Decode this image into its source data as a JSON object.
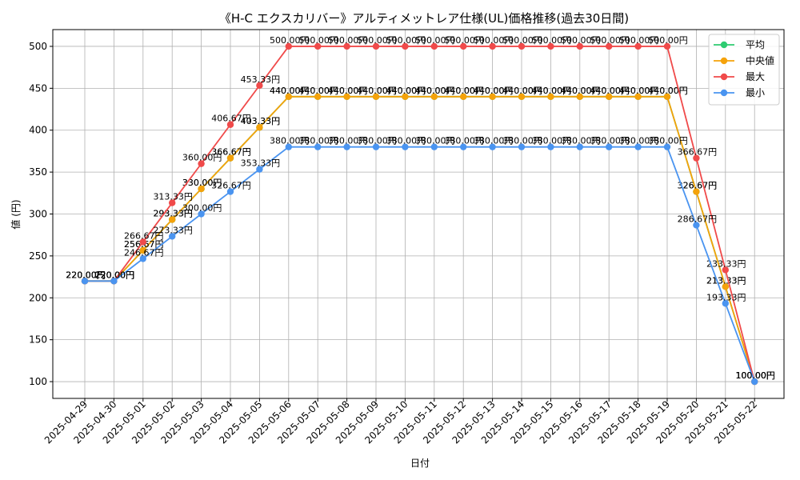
{
  "chart_data": {
    "type": "line",
    "title": "《H-C エクスカリバー》アルティメットレア仕様(UL)価格推移(過去30日間)",
    "xlabel": "日付",
    "ylabel": "値 (円)",
    "ylim": [
      80,
      520
    ],
    "yticks": [
      100,
      150,
      200,
      250,
      300,
      350,
      400,
      450,
      500
    ],
    "grid": true,
    "legend_position": "top-right",
    "label_suffix": "円",
    "categories": [
      "2025-04-29",
      "2025-04-30",
      "2025-05-01",
      "2025-05-02",
      "2025-05-03",
      "2025-05-04",
      "2025-05-05",
      "2025-05-06",
      "2025-05-07",
      "2025-05-08",
      "2025-05-09",
      "2025-05-10",
      "2025-05-11",
      "2025-05-12",
      "2025-05-13",
      "2025-05-14",
      "2025-05-15",
      "2025-05-16",
      "2025-05-17",
      "2025-05-18",
      "2025-05-19",
      "2025-05-20",
      "2025-05-21",
      "2025-05-22"
    ],
    "series": [
      {
        "name": "平均",
        "color": "#2ecc71",
        "values": [
          220,
          220,
          256.67,
          293.33,
          330,
          366.67,
          403.33,
          440,
          440,
          440,
          440,
          440,
          440,
          440,
          440,
          440,
          440,
          440,
          440,
          440,
          440,
          326.67,
          213.33,
          100
        ]
      },
      {
        "name": "中央値",
        "color": "#f5a20a",
        "values": [
          220,
          220,
          256.67,
          293.33,
          330,
          366.67,
          403.33,
          440,
          440,
          440,
          440,
          440,
          440,
          440,
          440,
          440,
          440,
          440,
          440,
          440,
          440,
          326.67,
          213.33,
          100
        ]
      },
      {
        "name": "最大",
        "color": "#f04a4a",
        "values": [
          220,
          220,
          266.67,
          313.33,
          360,
          406.67,
          453.33,
          500,
          500,
          500,
          500,
          500,
          500,
          500,
          500,
          500,
          500,
          500,
          500,
          500,
          500,
          366.67,
          233.33,
          100
        ]
      },
      {
        "name": "最小",
        "color": "#4a94f0",
        "values": [
          220,
          220,
          246.67,
          273.33,
          300,
          326.67,
          353.33,
          380,
          380,
          380,
          380,
          380,
          380,
          380,
          380,
          380,
          380,
          380,
          380,
          380,
          380,
          286.67,
          193.33,
          100
        ]
      }
    ]
  }
}
